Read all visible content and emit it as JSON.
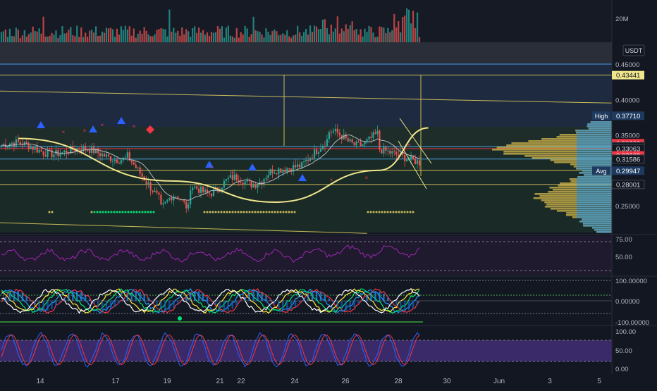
{
  "chart_data": [
    {
      "type": "bar",
      "name": "volume",
      "y_ticks": [
        {
          "label": "20M",
          "value": 20000000
        }
      ],
      "ylim": [
        0,
        30000000
      ]
    },
    {
      "type": "line",
      "name": "price",
      "axis_unit": "USDT",
      "ylim": [
        0.21,
        0.465
      ],
      "y_ticks": [
        {
          "label": "0.45000",
          "value": 0.45
        },
        {
          "label": "0.40000",
          "value": 0.4
        },
        {
          "label": "0.35000",
          "value": 0.35
        },
        {
          "label": "0.25000",
          "value": 0.25
        }
      ],
      "price_tags": [
        {
          "label": "0.43441",
          "value": 0.43441,
          "color": "#f0e68c",
          "text_color": "#131722"
        },
        {
          "prefix": "High",
          "label": "0.37710",
          "value": 0.3771,
          "color": "#1e3a5f",
          "text_color": "#ffffff"
        },
        {
          "label": "0.33822",
          "value": 0.33822,
          "color": "#f23645",
          "text_color": "#ffffff"
        },
        {
          "label": "0.33360",
          "value": 0.3336,
          "color": "#131722",
          "text_color": "#d1d4dc"
        },
        {
          "label": "0.33063",
          "value": 0.33063,
          "color": "#131722",
          "text_color": "#d1d4dc"
        },
        {
          "label": "0.32109",
          "value": 0.32109,
          "color": "#f23645",
          "text_color": "#ffffff"
        },
        {
          "label": "0.31586",
          "value": 0.31586,
          "color": "#131722",
          "text_color": "#d1d4dc"
        },
        {
          "prefix": "Avg",
          "label": "0.29947",
          "value": 0.29947,
          "color": "#1e3a5f",
          "text_color": "#ffffff"
        },
        {
          "label": "0.28001",
          "value": 0.28001,
          "color": "#131722",
          "text_color": "#d1d4dc"
        }
      ],
      "horizontal_levels": [
        {
          "value": 0.45,
          "color": "#4aa3df"
        },
        {
          "value": 0.43441,
          "color": "#c9b95a"
        },
        {
          "value": 0.3336,
          "color": "#4aa3df"
        },
        {
          "value": 0.33063,
          "color": "#f23645"
        },
        {
          "value": 0.31586,
          "color": "#4aa3df"
        },
        {
          "value": 0.3,
          "color": "#c9b95a"
        },
        {
          "value": 0.28001,
          "color": "#c9b95a"
        }
      ],
      "trend_lines": [
        {
          "from": [
            0,
            0.412
          ],
          "to": [
            1,
            0.395
          ]
        },
        {
          "from": [
            0,
            0.226
          ],
          "to": [
            0.6,
            0.211
          ]
        }
      ],
      "cup_curve": [
        [
          0.03,
          0.345
        ],
        [
          0.28,
          0.285
        ],
        [
          0.45,
          0.255
        ],
        [
          0.62,
          0.3
        ],
        [
          0.7,
          0.36
        ]
      ]
    },
    {
      "type": "line",
      "name": "rsi",
      "y_ticks": [
        {
          "label": "75.00",
          "value": 75
        },
        {
          "label": "50.00",
          "value": 50
        }
      ],
      "ylim": [
        10,
        85
      ],
      "bands": [
        70,
        30
      ]
    },
    {
      "type": "line",
      "name": "oscillator",
      "y_ticks": [
        {
          "label": "100.00000",
          "value": 100
        },
        {
          "label": "0.00000",
          "value": 0
        },
        {
          "label": "-100.00000",
          "value": -100
        }
      ],
      "ylim": [
        -120,
        120
      ]
    },
    {
      "type": "line",
      "name": "stochastic",
      "y_ticks": [
        {
          "label": "100.00",
          "value": 100
        },
        {
          "label": "50.00",
          "value": 50
        },
        {
          "label": "0.00",
          "value": 0
        }
      ],
      "ylim": [
        -10,
        110
      ],
      "band": [
        20,
        80
      ]
    }
  ],
  "x_axis": {
    "ticks": [
      "14",
      "17",
      "19",
      "21",
      "22",
      "24",
      "26",
      "28",
      "30",
      "Jun",
      "3",
      "5"
    ]
  }
}
